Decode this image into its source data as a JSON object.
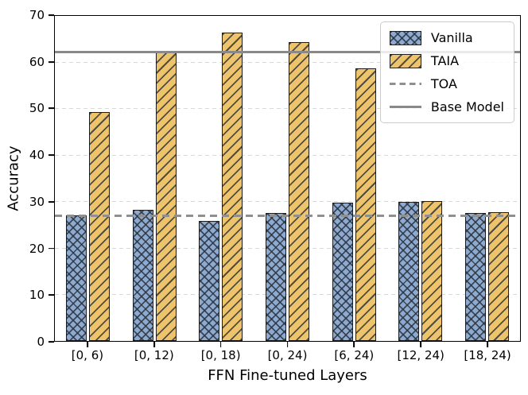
{
  "figure": {
    "background": "#ffffff"
  },
  "chart_data": {
    "type": "bar",
    "title": "",
    "xlabel": "FFN Fine-tuned Layers",
    "ylabel": "Accuracy",
    "ylim": [
      0,
      70
    ],
    "yticks": [
      0,
      10,
      20,
      30,
      40,
      50,
      60,
      70
    ],
    "grid": "horizontal dashed at each ytick",
    "legend_position": "upper right",
    "categories": [
      "[0, 6)",
      "[0, 12)",
      "[0, 18)",
      "[0, 24)",
      "[6, 24)",
      "[12, 24)",
      "[18, 24)"
    ],
    "series": [
      {
        "name": "Vanilla",
        "kind": "bar",
        "hatch": "xx",
        "fill_color": "#8dabd0",
        "edge_color": "#1c1c1c",
        "values": [
          27.0,
          28.2,
          25.9,
          27.6,
          29.8,
          30.0,
          27.5
        ]
      },
      {
        "name": "TAIA",
        "kind": "bar",
        "hatch": "//",
        "fill_color": "#edc46c",
        "edge_color": "#1c1c1c",
        "values": [
          49.3,
          62.4,
          66.4,
          64.3,
          58.7,
          30.2,
          27.8
        ]
      }
    ],
    "hlines": [
      {
        "name": "TOA",
        "value": 27.0,
        "style": "dashed",
        "color": "#8f8f8f"
      },
      {
        "name": "Base Model",
        "value": 62.2,
        "style": "solid",
        "color": "#898989"
      }
    ],
    "legend_entries": [
      {
        "label": "Vanilla",
        "marker": "patch-vanilla"
      },
      {
        "label": "TAIA",
        "marker": "patch-taia"
      },
      {
        "label": "TOA",
        "marker": "line-dashed"
      },
      {
        "label": "Base Model",
        "marker": "line-solid"
      }
    ]
  }
}
